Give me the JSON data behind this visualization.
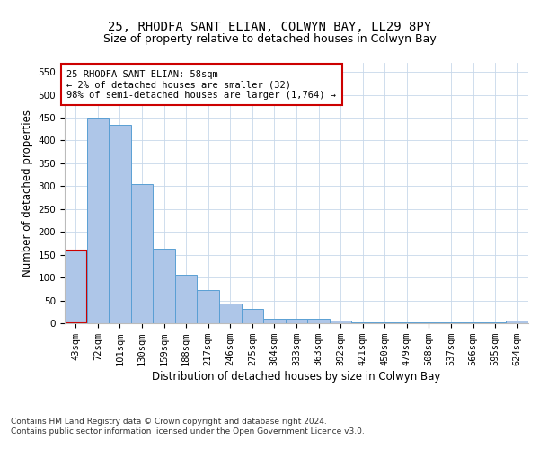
{
  "title": "25, RHODFA SANT ELIAN, COLWYN BAY, LL29 8PY",
  "subtitle": "Size of property relative to detached houses in Colwyn Bay",
  "xlabel": "Distribution of detached houses by size in Colwyn Bay",
  "ylabel": "Number of detached properties",
  "categories": [
    "43sqm",
    "72sqm",
    "101sqm",
    "130sqm",
    "159sqm",
    "188sqm",
    "217sqm",
    "246sqm",
    "275sqm",
    "304sqm",
    "333sqm",
    "363sqm",
    "392sqm",
    "421sqm",
    "450sqm",
    "479sqm",
    "508sqm",
    "537sqm",
    "566sqm",
    "595sqm",
    "624sqm"
  ],
  "values": [
    160,
    450,
    435,
    305,
    163,
    106,
    73,
    43,
    32,
    10,
    10,
    10,
    5,
    2,
    2,
    2,
    2,
    2,
    2,
    2,
    5
  ],
  "bar_color": "#aec6e8",
  "bar_edge_color": "#5a9fd4",
  "highlight_color": "#cc0000",
  "annotation_text": "25 RHODFA SANT ELIAN: 58sqm\n← 2% of detached houses are smaller (32)\n98% of semi-detached houses are larger (1,764) →",
  "annotation_box_color": "#ffffff",
  "annotation_box_edge_color": "#cc0000",
  "ylim": [
    0,
    570
  ],
  "yticks": [
    0,
    50,
    100,
    150,
    200,
    250,
    300,
    350,
    400,
    450,
    500,
    550
  ],
  "footer1": "Contains HM Land Registry data © Crown copyright and database right 2024.",
  "footer2": "Contains public sector information licensed under the Open Government Licence v3.0.",
  "title_fontsize": 10,
  "subtitle_fontsize": 9,
  "tick_fontsize": 7.5,
  "ylabel_fontsize": 8.5,
  "xlabel_fontsize": 8.5,
  "annotation_fontsize": 7.5,
  "footer_fontsize": 6.5
}
